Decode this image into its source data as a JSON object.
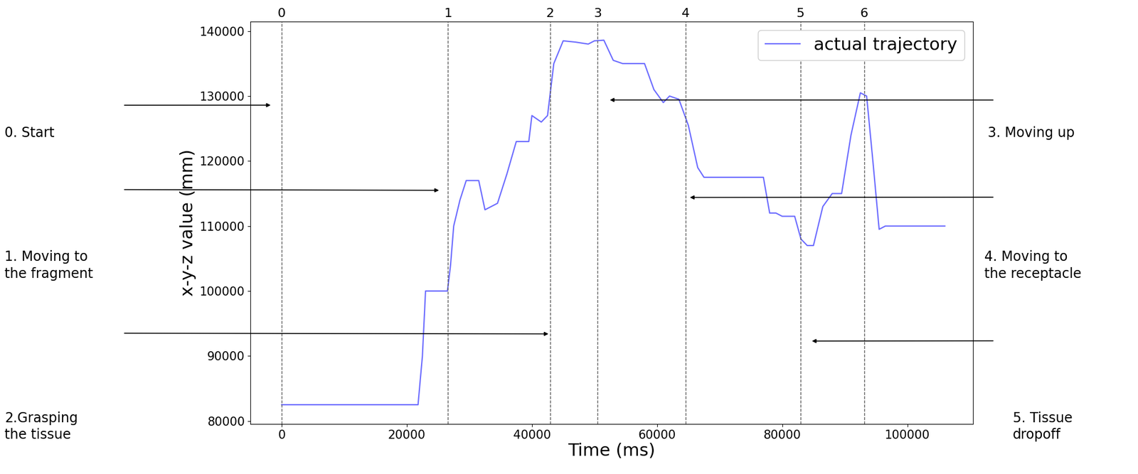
{
  "chart_data": {
    "type": "line",
    "xlabel": "Time (ms)",
    "ylabel": "x-y-z value (mm)",
    "xlim": [
      -5000,
      110500
    ],
    "ylim": [
      79500,
      141500
    ],
    "xticks": [
      0,
      20000,
      40000,
      60000,
      80000,
      100000
    ],
    "yticks": [
      80000,
      90000,
      100000,
      110000,
      120000,
      130000,
      140000
    ],
    "grid": false,
    "legend": "upper right",
    "series": [
      {
        "name": "actual trajectory",
        "color": "#6b6bff",
        "line_style": "solid",
        "x": [
          0,
          21800,
          22500,
          23000,
          26500,
          27000,
          27500,
          28500,
          29500,
          31500,
          32500,
          34500,
          36000,
          37500,
          39500,
          40000,
          41500,
          42500,
          43500,
          45000,
          47000,
          49000,
          50000,
          51500,
          53000,
          54500,
          58000,
          59500,
          61000,
          62000,
          63500,
          65000,
          66500,
          67500,
          77000,
          78000,
          79000,
          80000,
          82000,
          83000,
          84000,
          85000,
          86500,
          88000,
          89500,
          91000,
          92500,
          93500,
          94500,
          95500,
          96500,
          106000
        ],
        "values": [
          82500,
          82500,
          90000,
          100000,
          100000,
          104000,
          110000,
          114000,
          117000,
          117000,
          112500,
          113500,
          118000,
          123000,
          123000,
          127000,
          126000,
          127000,
          135000,
          138500,
          138300,
          138000,
          138500,
          138600,
          135500,
          135000,
          135000,
          131000,
          129000,
          130000,
          129500,
          125500,
          119000,
          117500,
          117500,
          112000,
          112000,
          111500,
          111500,
          108000,
          107000,
          107000,
          113000,
          115000,
          115000,
          124000,
          130500,
          130000,
          120000,
          109500,
          110000,
          110000
        ]
      }
    ],
    "phases": [
      {
        "label": "0",
        "x": 0
      },
      {
        "label": "1",
        "x": 26600
      },
      {
        "label": "2",
        "x": 42900
      },
      {
        "label": "3",
        "x": 50500
      },
      {
        "label": "4",
        "x": 64600
      },
      {
        "label": "5",
        "x": 82900
      },
      {
        "label": "6",
        "x": 93100
      }
    ],
    "annotations": [
      {
        "text": "0. Start",
        "x": -1500,
        "y": 128600
      },
      {
        "text": "1. Moving to\nthe fragment",
        "x": 25400,
        "y": 115500
      },
      {
        "text": "2.Grasping\nthe tissue",
        "x": 42900,
        "y": 93400
      },
      {
        "text": "3. Moving up",
        "x": 52200,
        "y": 129400
      },
      {
        "text": "4. Moving to\nthe receptacle",
        "x": 65000,
        "y": 114400
      },
      {
        "text": "5. Tissue\ndropoff",
        "x": 84500,
        "y": 92300
      }
    ]
  }
}
